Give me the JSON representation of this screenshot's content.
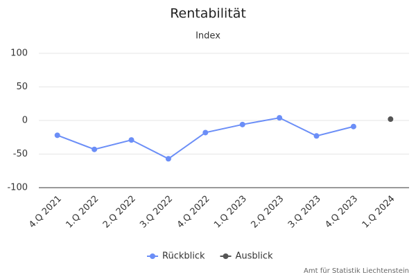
{
  "chart_data": {
    "type": "line",
    "title": "Rentabilität",
    "subtitle": "Index",
    "categories": [
      "4.Q 2021",
      "1.Q 2022",
      "2.Q 2022",
      "3.Q 2022",
      "4.Q 2022",
      "1.Q 2023",
      "2.Q 2023",
      "3.Q 2023",
      "4.Q 2023",
      "1.Q 2024"
    ],
    "series": [
      {
        "name": "Rückblick",
        "color": "#6b8ef7",
        "values": [
          -22,
          -43,
          -29,
          -57,
          -18,
          -6,
          4,
          -23,
          -9,
          null
        ]
      },
      {
        "name": "Ausblick",
        "color": "#555555",
        "values": [
          null,
          null,
          null,
          null,
          null,
          null,
          null,
          null,
          null,
          2
        ]
      }
    ],
    "ylim": [
      -100,
      100
    ],
    "yticks": [
      -100,
      -50,
      0,
      50,
      100
    ],
    "grid": true,
    "credits": "Amt für Statistik Liechtenstein"
  }
}
